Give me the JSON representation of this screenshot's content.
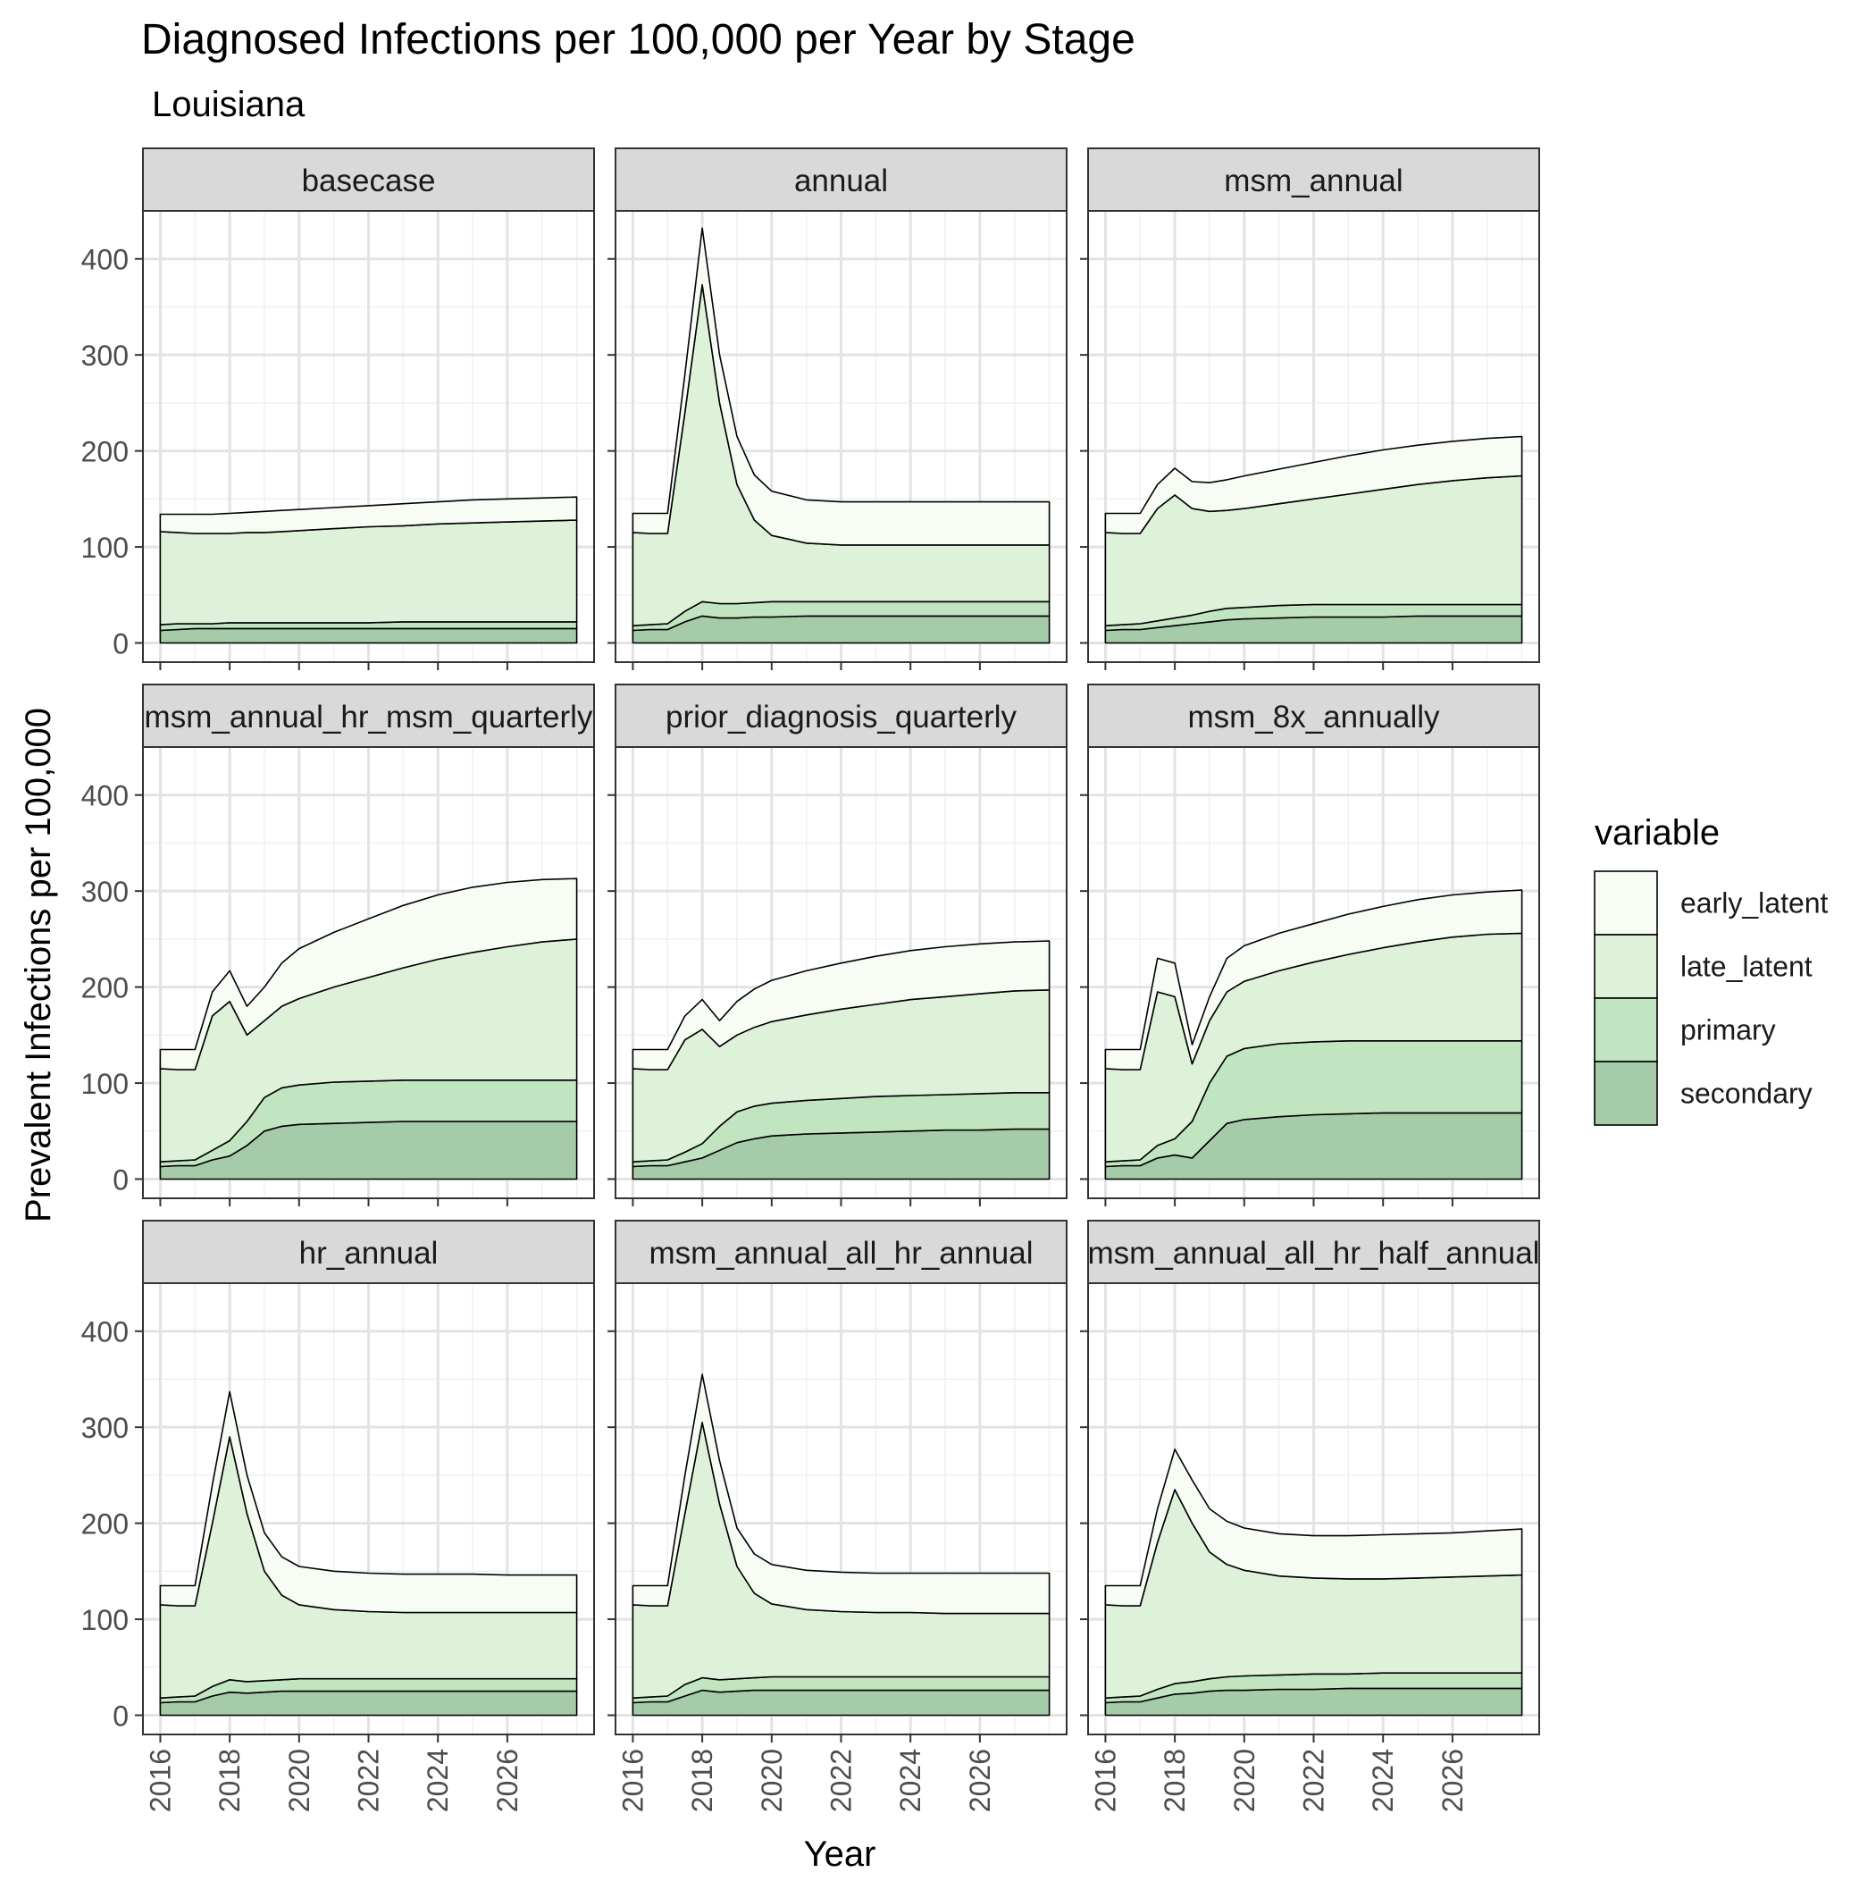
{
  "chart_data": {
    "type": "area",
    "title": "Diagnosed Infections per 100,000 per Year by Stage",
    "subtitle": "Louisiana",
    "xlabel": "Year",
    "ylabel": "Prevalent Infections per 100,000",
    "stacked": true,
    "xlim": [
      2015.5,
      2028.5
    ],
    "ylim": [
      -20,
      450
    ],
    "x_ticks": [
      2016,
      2018,
      2020,
      2022,
      2024,
      2026
    ],
    "y_ticks": [
      0,
      100,
      200,
      300,
      400
    ],
    "grid": true,
    "legend": {
      "title": "variable",
      "position": "right",
      "entries": [
        "early_latent",
        "late_latent",
        "primary",
        "secondary"
      ],
      "colors": {
        "early_latent": "#f7fcf5",
        "late_latent": "#def2da",
        "primary": "#c1e4c1",
        "secondary": "#a5cba9"
      }
    },
    "stack_order_bottom_to_top": [
      "secondary",
      "primary",
      "late_latent",
      "early_latent"
    ],
    "x": [
      2016,
      2016.5,
      2017,
      2017.5,
      2018,
      2018.5,
      2019,
      2019.5,
      2020,
      2021,
      2022,
      2023,
      2024,
      2025,
      2026,
      2027,
      2028
    ],
    "panels": [
      {
        "name": "basecase",
        "cumulative": {
          "secondary": [
            13,
            14,
            15,
            15,
            15,
            15,
            15,
            15,
            15,
            15,
            15,
            15,
            15,
            15,
            15,
            15,
            15
          ],
          "primary": [
            19,
            20,
            20,
            20,
            21,
            21,
            21,
            21,
            21,
            21,
            21,
            22,
            22,
            22,
            22,
            22,
            22
          ],
          "late_latent": [
            116,
            115,
            114,
            114,
            114,
            115,
            115,
            116,
            117,
            119,
            121,
            122,
            124,
            125,
            126,
            127,
            128
          ],
          "early_latent": [
            134,
            134,
            134,
            134,
            135,
            136,
            137,
            138,
            139,
            141,
            143,
            145,
            147,
            149,
            150,
            151,
            152
          ]
        }
      },
      {
        "name": "annual",
        "cumulative": {
          "secondary": [
            13,
            14,
            14,
            22,
            28,
            26,
            26,
            27,
            27,
            28,
            28,
            28,
            28,
            28,
            28,
            28,
            28
          ],
          "primary": [
            18,
            19,
            20,
            33,
            43,
            41,
            41,
            42,
            43,
            43,
            43,
            43,
            43,
            43,
            43,
            43,
            43
          ],
          "late_latent": [
            115,
            114,
            114,
            240,
            373,
            250,
            165,
            128,
            112,
            104,
            102,
            102,
            102,
            102,
            102,
            102,
            102
          ],
          "early_latent": [
            135,
            135,
            135,
            280,
            432,
            300,
            215,
            175,
            158,
            149,
            147,
            147,
            147,
            147,
            147,
            147,
            147
          ]
        }
      },
      {
        "name": "msm_annual",
        "cumulative": {
          "secondary": [
            13,
            14,
            14,
            16,
            18,
            20,
            22,
            24,
            25,
            26,
            27,
            27,
            27,
            28,
            28,
            28,
            28
          ],
          "primary": [
            18,
            19,
            20,
            23,
            26,
            29,
            33,
            36,
            37,
            39,
            40,
            40,
            40,
            40,
            40,
            40,
            40
          ],
          "late_latent": [
            115,
            114,
            114,
            140,
            154,
            140,
            137,
            138,
            140,
            145,
            150,
            155,
            160,
            165,
            169,
            172,
            174
          ],
          "early_latent": [
            135,
            135,
            135,
            165,
            182,
            168,
            167,
            170,
            174,
            181,
            188,
            195,
            201,
            206,
            210,
            213,
            215
          ]
        }
      },
      {
        "name": "msm_annual_hr_msm_quarterly",
        "cumulative": {
          "secondary": [
            13,
            14,
            14,
            20,
            24,
            35,
            50,
            55,
            57,
            58,
            59,
            60,
            60,
            60,
            60,
            60,
            60
          ],
          "primary": [
            18,
            19,
            20,
            30,
            40,
            60,
            85,
            95,
            98,
            101,
            102,
            103,
            103,
            103,
            103,
            103,
            103
          ],
          "late_latent": [
            115,
            114,
            114,
            170,
            185,
            150,
            165,
            180,
            188,
            200,
            210,
            220,
            229,
            236,
            242,
            247,
            250
          ],
          "early_latent": [
            135,
            135,
            135,
            195,
            217,
            180,
            200,
            225,
            240,
            257,
            271,
            285,
            296,
            304,
            309,
            312,
            313
          ]
        }
      },
      {
        "name": "prior_diagnosis_quarterly",
        "cumulative": {
          "secondary": [
            13,
            14,
            14,
            18,
            22,
            30,
            38,
            42,
            45,
            47,
            48,
            49,
            50,
            51,
            51,
            52,
            52
          ],
          "primary": [
            18,
            19,
            20,
            28,
            37,
            55,
            70,
            76,
            79,
            82,
            84,
            86,
            87,
            88,
            89,
            90,
            90
          ],
          "late_latent": [
            115,
            114,
            114,
            145,
            156,
            138,
            150,
            158,
            164,
            171,
            177,
            182,
            187,
            190,
            193,
            196,
            197
          ],
          "early_latent": [
            135,
            135,
            135,
            170,
            187,
            165,
            185,
            198,
            207,
            217,
            225,
            232,
            238,
            242,
            245,
            247,
            248
          ]
        }
      },
      {
        "name": "msm_8x_annually",
        "cumulative": {
          "secondary": [
            13,
            14,
            14,
            22,
            25,
            22,
            40,
            58,
            62,
            65,
            67,
            68,
            69,
            69,
            69,
            69,
            69
          ],
          "primary": [
            18,
            19,
            20,
            35,
            42,
            60,
            100,
            128,
            136,
            141,
            143,
            144,
            144,
            144,
            144,
            144,
            144
          ],
          "late_latent": [
            115,
            114,
            114,
            195,
            190,
            120,
            165,
            195,
            206,
            217,
            226,
            234,
            241,
            247,
            252,
            255,
            256
          ],
          "early_latent": [
            135,
            135,
            135,
            230,
            225,
            140,
            190,
            230,
            243,
            256,
            266,
            276,
            284,
            291,
            296,
            299,
            301
          ]
        }
      },
      {
        "name": "hr_annual",
        "cumulative": {
          "secondary": [
            13,
            14,
            14,
            20,
            24,
            23,
            24,
            25,
            25,
            25,
            25,
            25,
            25,
            25,
            25,
            25,
            25
          ],
          "primary": [
            18,
            19,
            20,
            30,
            37,
            35,
            36,
            37,
            38,
            38,
            38,
            38,
            38,
            38,
            38,
            38,
            38
          ],
          "late_latent": [
            115,
            114,
            114,
            200,
            290,
            210,
            150,
            125,
            115,
            110,
            108,
            107,
            107,
            107,
            107,
            107,
            107
          ],
          "early_latent": [
            135,
            135,
            135,
            240,
            337,
            250,
            190,
            165,
            155,
            150,
            148,
            147,
            147,
            147,
            146,
            146,
            146
          ]
        }
      },
      {
        "name": "msm_annual_all_hr_annual",
        "cumulative": {
          "secondary": [
            13,
            14,
            14,
            20,
            26,
            24,
            25,
            26,
            26,
            26,
            26,
            26,
            26,
            26,
            26,
            26,
            26
          ],
          "primary": [
            18,
            19,
            20,
            32,
            39,
            37,
            38,
            39,
            40,
            40,
            40,
            40,
            40,
            40,
            40,
            40,
            40
          ],
          "late_latent": [
            115,
            114,
            114,
            210,
            305,
            220,
            155,
            127,
            116,
            110,
            108,
            107,
            107,
            106,
            106,
            106,
            106
          ],
          "early_latent": [
            135,
            135,
            135,
            250,
            355,
            265,
            195,
            168,
            157,
            151,
            149,
            148,
            148,
            148,
            148,
            148,
            148
          ]
        }
      },
      {
        "name": "msm_annual_all_hr_half_annual",
        "cumulative": {
          "secondary": [
            13,
            14,
            14,
            18,
            22,
            23,
            25,
            26,
            26,
            27,
            27,
            28,
            28,
            28,
            28,
            28,
            28
          ],
          "primary": [
            18,
            19,
            20,
            27,
            33,
            35,
            38,
            40,
            41,
            42,
            43,
            43,
            44,
            44,
            44,
            44,
            44
          ],
          "late_latent": [
            115,
            114,
            114,
            180,
            235,
            200,
            170,
            157,
            151,
            145,
            143,
            142,
            142,
            143,
            144,
            145,
            146
          ],
          "early_latent": [
            135,
            135,
            135,
            215,
            277,
            245,
            215,
            202,
            195,
            189,
            187,
            187,
            188,
            189,
            190,
            192,
            194
          ]
        }
      }
    ]
  }
}
